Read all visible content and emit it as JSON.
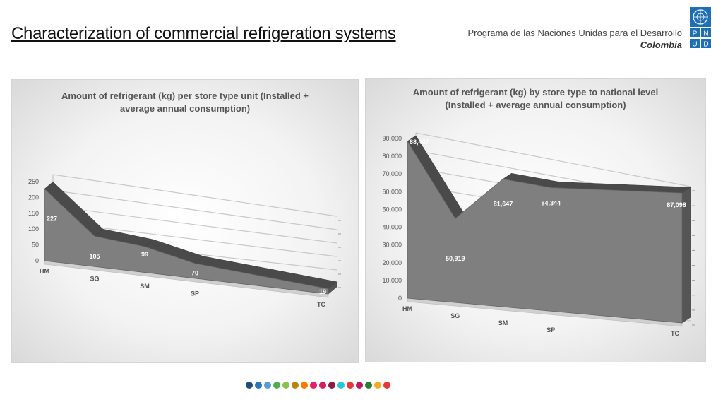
{
  "slide": {
    "title": "Characterization of commercial refrigeration systems",
    "org_line1": "Programa de las Naciones Unidas para el Desarrollo",
    "org_line2": "Colombia",
    "logo_letters": [
      "P",
      "N",
      "U",
      "D"
    ],
    "sdg_colors": [
      "#1f4e79",
      "#2e75b6",
      "#5b9bd5",
      "#4caf50",
      "#8bc34a",
      "#b8860b",
      "#f57c00",
      "#e91e63",
      "#d81b60",
      "#8e1b3f",
      "#26c6da",
      "#e53935",
      "#c2185b",
      "#2e7d32",
      "#f9a825",
      "#e53935"
    ]
  },
  "chart_data": [
    {
      "type": "area",
      "title": "Amount of refrigerant (kg) per store type unit (Installed + average annual consumption)",
      "categories": [
        "HM",
        "SG",
        "SM",
        "SP",
        "TC"
      ],
      "values": [
        227,
        105,
        99,
        70,
        19
      ],
      "data_labels": [
        "227",
        "105",
        "99",
        "70",
        "19"
      ],
      "y_ticks": [
        "0",
        "50",
        "100",
        "150",
        "200",
        "250"
      ],
      "ylim": [
        0,
        250
      ],
      "grid": true,
      "color": "#7f7f7f"
    },
    {
      "type": "area",
      "title": "Amount of refrigerant (kg) by store type to national level (Installed + average annual consumption)",
      "categories": [
        "HM",
        "SG",
        "SM",
        "SP",
        "TC"
      ],
      "values": [
        88467,
        50919,
        81647,
        84344,
        87098
      ],
      "data_labels": [
        "88,467",
        "50,919",
        "81,647",
        "84,344",
        "87,098"
      ],
      "y_ticks": [
        "0",
        "10,000",
        "20,000",
        "30,000",
        "40,000",
        "50,000",
        "60,000",
        "70,000",
        "80,000",
        "90,000"
      ],
      "ylim": [
        0,
        90000
      ],
      "grid": true,
      "color": "#7f7f7f"
    }
  ]
}
